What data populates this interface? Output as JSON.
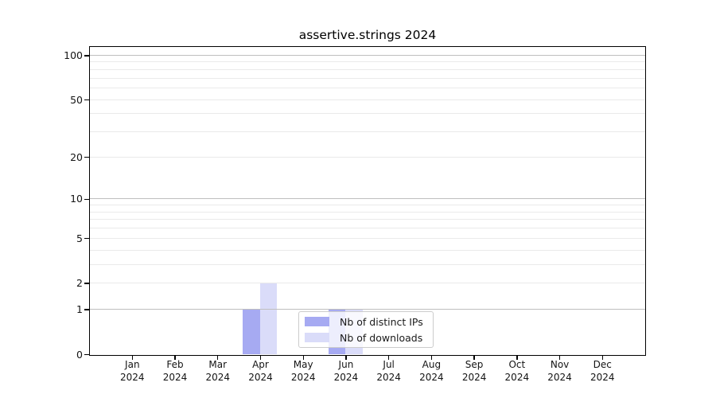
{
  "chart_data": {
    "type": "bar",
    "title": "assertive.strings 2024",
    "x": {
      "categories": [
        "Jan",
        "Feb",
        "Mar",
        "Apr",
        "May",
        "Jun",
        "Jul",
        "Aug",
        "Sep",
        "Oct",
        "Nov",
        "Dec"
      ],
      "year": "2024"
    },
    "y": {
      "ticks": [
        0,
        1,
        2,
        5,
        10,
        20,
        50,
        100
      ],
      "scale": "log10(1+value)",
      "min": 0,
      "max": 113.9,
      "gridlines": {
        "major": [
          1,
          10,
          100
        ],
        "minor": [
          2,
          3,
          4,
          5,
          6,
          7,
          8,
          9,
          20,
          30,
          40,
          50,
          60,
          70,
          80,
          90
        ]
      }
    },
    "series": [
      {
        "name": "Nb of distinct IPs",
        "color": "#a6aaf2",
        "values": [
          0,
          0,
          0,
          1,
          0,
          1,
          0,
          0,
          0,
          0,
          0,
          0
        ]
      },
      {
        "name": "Nb of downloads",
        "color": "#dadcf9",
        "values": [
          0,
          0,
          0,
          2,
          0,
          1,
          0,
          0,
          0,
          0,
          0,
          0
        ]
      }
    ],
    "legend": {
      "position": "inside-bottom-center",
      "frame_alpha": 0.8
    },
    "colors": {
      "grid_major": "#bfbfbf",
      "grid_minor": "#eaeaea",
      "axis": "#000000",
      "text": "#141414"
    }
  }
}
